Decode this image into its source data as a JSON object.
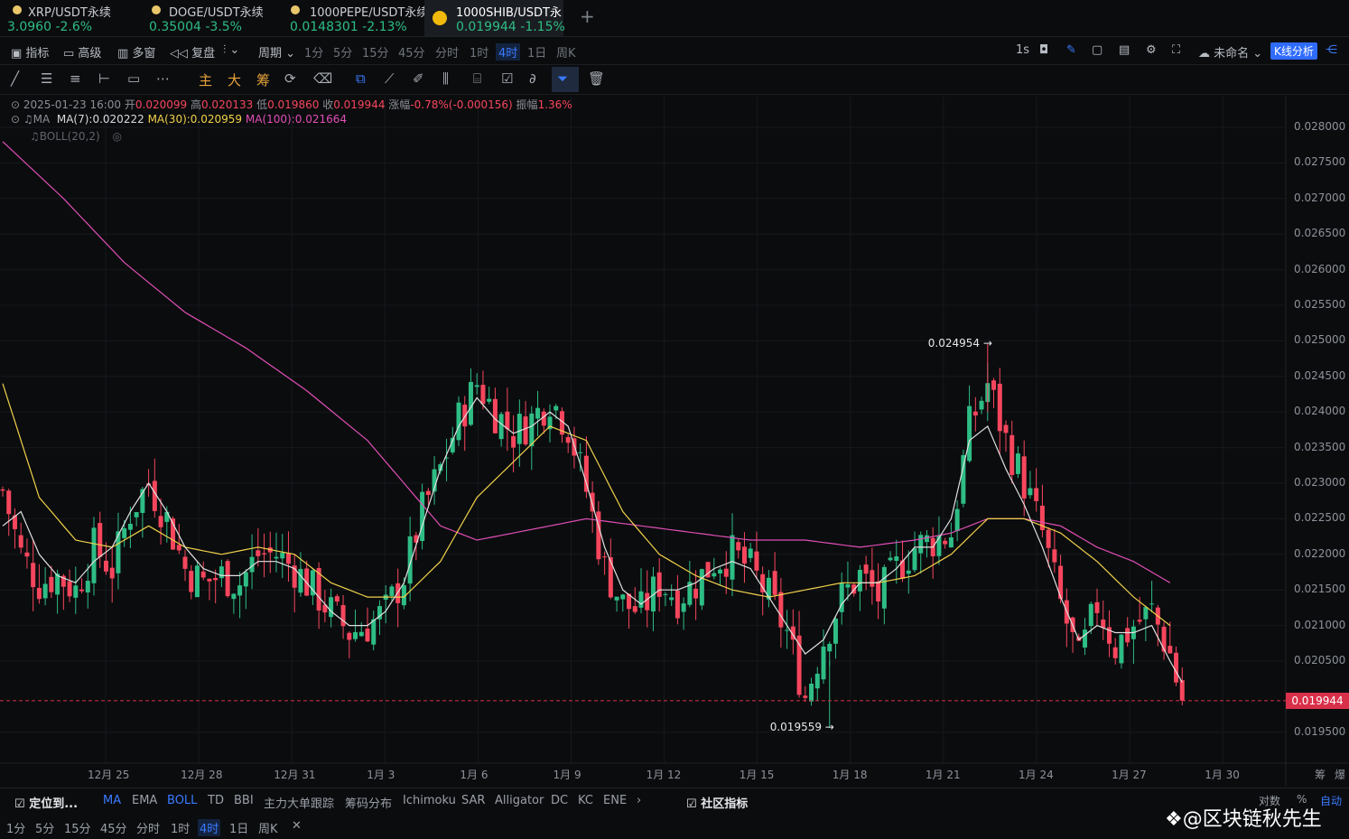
{
  "tabs": [
    {
      "name": "XRP/USDT永续",
      "price": "3.0960",
      "change": "-2.6%"
    },
    {
      "name": "DOGE/USDT永续",
      "price": "0.35004",
      "change": "-3.5%"
    },
    {
      "name": "1000PEPE/USDT永续",
      "price": "0.0148301",
      "change": "-2.13%"
    },
    {
      "name": "1000SHIB/USDT永",
      "price": "0.019944",
      "change": "-1.15%"
    }
  ],
  "toolbar": {
    "indicator": "指标",
    "advanced": "高级",
    "multi": "多窗",
    "replay": "复盘",
    "period": "周期",
    "intervals": [
      "1分",
      "5分",
      "15分",
      "45分",
      "分时",
      "1时",
      "4时",
      "1日",
      "周K"
    ],
    "selected_interval": "4时",
    "refresh": "1s",
    "unnamed": "未命名",
    "kline_analysis": "K线分析"
  },
  "drawtools": {
    "main": "主",
    "big": "大",
    "chips": "筹"
  },
  "ohlc": {
    "date": "2025-01-23 16:00",
    "open_label": "开",
    "open": "0.020099",
    "high_label": "高",
    "high": "0.020133",
    "low_label": "低",
    "low": "0.019860",
    "close_label": "收",
    "close": "0.019944",
    "chg_label": "涨幅",
    "chg": "-0.78%(-0.000156)",
    "amp_label": "振幅",
    "amp": "1.36%"
  },
  "ma_legend": {
    "label": "MA",
    "ma7": "MA(7):0.020222",
    "ma30": "MA(30):0.020959",
    "ma100": "MA(100):0.021664"
  },
  "boll_legend": "BOLL(20,2)",
  "colors": {
    "up": "#2ebd85",
    "down": "#f6465d",
    "ma7": "#e0e0e0",
    "ma30": "#f0d14a",
    "ma100": "#e04fb6",
    "accent": "#3a7bff"
  },
  "chart_data": {
    "type": "candlestick",
    "y_ticks": [
      "0.028000",
      "0.027500",
      "0.027000",
      "0.026500",
      "0.026000",
      "0.025500",
      "0.025000",
      "0.024500",
      "0.024000",
      "0.023500",
      "0.023000",
      "0.022500",
      "0.022000",
      "0.021500",
      "0.021000",
      "0.020500",
      "0.019500"
    ],
    "ylim": [
      0.0192,
      0.0285
    ],
    "x_ticks": [
      "12月 25",
      "12月 28",
      "12月 31",
      "1月 3",
      "1月 6",
      "1月 9",
      "1月 12",
      "1月 15",
      "1月 18",
      "1月 21",
      "1月 24",
      "1月 27",
      "1月 30"
    ],
    "last_price": "0.019944",
    "last_price_value": 0.019944,
    "high_annotation": "0.024954",
    "high_value": 0.024954,
    "low_annotation": "0.019559",
    "low_value": 0.019559,
    "close_path": [
      [
        0,
        0.0229
      ],
      [
        3,
        0.022
      ],
      [
        6,
        0.0216
      ],
      [
        9,
        0.0217
      ],
      [
        12,
        0.0215
      ],
      [
        15,
        0.0221
      ],
      [
        18,
        0.0218
      ],
      [
        21,
        0.0226
      ],
      [
        24,
        0.023
      ],
      [
        27,
        0.0225
      ],
      [
        30,
        0.0218
      ],
      [
        33,
        0.0216
      ],
      [
        36,
        0.0217
      ],
      [
        39,
        0.0216
      ],
      [
        42,
        0.022
      ],
      [
        45,
        0.022
      ],
      [
        48,
        0.0218
      ],
      [
        51,
        0.0215
      ],
      [
        54,
        0.0212
      ],
      [
        57,
        0.0209
      ],
      [
        60,
        0.021
      ],
      [
        63,
        0.0212
      ],
      [
        66,
        0.0217
      ],
      [
        69,
        0.0226
      ],
      [
        72,
        0.0232
      ],
      [
        75,
        0.0239
      ],
      [
        78,
        0.0244
      ],
      [
        81,
        0.024
      ],
      [
        84,
        0.0237
      ],
      [
        87,
        0.0239
      ],
      [
        90,
        0.0242
      ],
      [
        93,
        0.0238
      ],
      [
        96,
        0.0229
      ],
      [
        99,
        0.0218
      ],
      [
        102,
        0.0213
      ],
      [
        105,
        0.0212
      ],
      [
        108,
        0.0216
      ],
      [
        111,
        0.0214
      ],
      [
        114,
        0.0216
      ],
      [
        117,
        0.0219
      ],
      [
        120,
        0.022
      ],
      [
        123,
        0.0218
      ],
      [
        126,
        0.0214
      ],
      [
        129,
        0.0209
      ],
      [
        132,
        0.02
      ],
      [
        135,
        0.0208
      ],
      [
        138,
        0.0214
      ],
      [
        141,
        0.0217
      ],
      [
        144,
        0.0214
      ],
      [
        147,
        0.0218
      ],
      [
        150,
        0.0221
      ],
      [
        153,
        0.0222
      ],
      [
        156,
        0.0223
      ],
      [
        159,
        0.0238
      ],
      [
        162,
        0.0244
      ],
      [
        165,
        0.0236
      ],
      [
        168,
        0.023
      ],
      [
        171,
        0.0223
      ],
      [
        174,
        0.0213
      ],
      [
        177,
        0.0205
      ],
      [
        180,
        0.0213
      ],
      [
        183,
        0.0207
      ],
      [
        186,
        0.021
      ],
      [
        189,
        0.0212
      ],
      [
        192,
        0.0206
      ],
      [
        194,
        0.0199
      ]
    ],
    "ma7_path": [
      [
        0,
        0.0224
      ],
      [
        3,
        0.0226
      ],
      [
        6,
        0.022
      ],
      [
        9,
        0.0217
      ],
      [
        12,
        0.0216
      ],
      [
        15,
        0.0219
      ],
      [
        18,
        0.0221
      ],
      [
        21,
        0.0226
      ],
      [
        24,
        0.023
      ],
      [
        27,
        0.0226
      ],
      [
        30,
        0.0221
      ],
      [
        33,
        0.0218
      ],
      [
        36,
        0.0217
      ],
      [
        39,
        0.0217
      ],
      [
        42,
        0.0219
      ],
      [
        45,
        0.0219
      ],
      [
        48,
        0.0218
      ],
      [
        51,
        0.0215
      ],
      [
        54,
        0.0212
      ],
      [
        57,
        0.021
      ],
      [
        60,
        0.021
      ],
      [
        63,
        0.0212
      ],
      [
        66,
        0.0216
      ],
      [
        69,
        0.0224
      ],
      [
        72,
        0.0232
      ],
      [
        75,
        0.0238
      ],
      [
        78,
        0.0242
      ],
      [
        81,
        0.0239
      ],
      [
        84,
        0.0237
      ],
      [
        87,
        0.0238
      ],
      [
        90,
        0.024
      ],
      [
        93,
        0.0238
      ],
      [
        96,
        0.023
      ],
      [
        99,
        0.0221
      ],
      [
        102,
        0.0215
      ],
      [
        105,
        0.0213
      ],
      [
        108,
        0.0215
      ],
      [
        111,
        0.0215
      ],
      [
        114,
        0.0216
      ],
      [
        117,
        0.0218
      ],
      [
        120,
        0.0219
      ],
      [
        123,
        0.0218
      ],
      [
        126,
        0.0214
      ],
      [
        129,
        0.021
      ],
      [
        132,
        0.0206
      ],
      [
        135,
        0.0208
      ],
      [
        138,
        0.0213
      ],
      [
        141,
        0.0216
      ],
      [
        144,
        0.0216
      ],
      [
        147,
        0.0218
      ],
      [
        150,
        0.0221
      ],
      [
        153,
        0.0221
      ],
      [
        156,
        0.0225
      ],
      [
        159,
        0.0236
      ],
      [
        162,
        0.0238
      ],
      [
        165,
        0.0232
      ],
      [
        168,
        0.0227
      ],
      [
        171,
        0.0221
      ],
      [
        174,
        0.0214
      ],
      [
        177,
        0.0208
      ],
      [
        180,
        0.021
      ],
      [
        183,
        0.0209
      ],
      [
        186,
        0.0209
      ],
      [
        189,
        0.021
      ],
      [
        192,
        0.0205
      ],
      [
        194,
        0.0202
      ]
    ],
    "ma30_path": [
      [
        0,
        0.0244
      ],
      [
        6,
        0.0228
      ],
      [
        12,
        0.0222
      ],
      [
        18,
        0.0221
      ],
      [
        24,
        0.0224
      ],
      [
        30,
        0.0221
      ],
      [
        36,
        0.022
      ],
      [
        42,
        0.0221
      ],
      [
        48,
        0.022
      ],
      [
        54,
        0.0216
      ],
      [
        60,
        0.0214
      ],
      [
        66,
        0.0214
      ],
      [
        72,
        0.0219
      ],
      [
        78,
        0.0228
      ],
      [
        84,
        0.0233
      ],
      [
        90,
        0.0238
      ],
      [
        96,
        0.0236
      ],
      [
        102,
        0.0226
      ],
      [
        108,
        0.022
      ],
      [
        114,
        0.0217
      ],
      [
        120,
        0.0215
      ],
      [
        126,
        0.0214
      ],
      [
        132,
        0.0215
      ],
      [
        138,
        0.0216
      ],
      [
        144,
        0.0216
      ],
      [
        150,
        0.0217
      ],
      [
        156,
        0.022
      ],
      [
        162,
        0.0225
      ],
      [
        168,
        0.0225
      ],
      [
        174,
        0.0223
      ],
      [
        180,
        0.0219
      ],
      [
        186,
        0.0214
      ],
      [
        192,
        0.021
      ]
    ],
    "ma100_path": [
      [
        0,
        0.0278
      ],
      [
        10,
        0.027
      ],
      [
        20,
        0.0261
      ],
      [
        30,
        0.0254
      ],
      [
        40,
        0.0249
      ],
      [
        50,
        0.0243
      ],
      [
        60,
        0.0236
      ],
      [
        66,
        0.023
      ],
      [
        72,
        0.0224
      ],
      [
        78,
        0.0222
      ],
      [
        84,
        0.0223
      ],
      [
        90,
        0.0224
      ],
      [
        96,
        0.0225
      ],
      [
        105,
        0.0224
      ],
      [
        114,
        0.0223
      ],
      [
        123,
        0.0222
      ],
      [
        132,
        0.0222
      ],
      [
        141,
        0.0221
      ],
      [
        150,
        0.0222
      ],
      [
        156,
        0.0223
      ],
      [
        162,
        0.0225
      ],
      [
        168,
        0.0225
      ],
      [
        174,
        0.0224
      ],
      [
        180,
        0.0221
      ],
      [
        186,
        0.0219
      ],
      [
        192,
        0.0216
      ]
    ],
    "candles_count": 195,
    "x_span": 210
  },
  "bottom": {
    "locate": "定位到...",
    "indicators": [
      "MA",
      "EMA",
      "BOLL",
      "TD",
      "BBI",
      "主力大单跟踪",
      "筹码分布",
      "Ichimoku",
      "SAR",
      "Alligator",
      "DC",
      "KC",
      "ENE"
    ],
    "active_indicators": [
      "MA",
      "BOLL"
    ],
    "community": "社区指标",
    "log": "对数",
    "pct": "%",
    "auto": "自动",
    "chips": "筹",
    "burst": "爆",
    "intervals": [
      "1分",
      "5分",
      "15分",
      "45分",
      "分时",
      "1时",
      "4时",
      "1日",
      "周K"
    ],
    "selected_interval": "4时"
  },
  "watermark": "@区块链秋先生"
}
